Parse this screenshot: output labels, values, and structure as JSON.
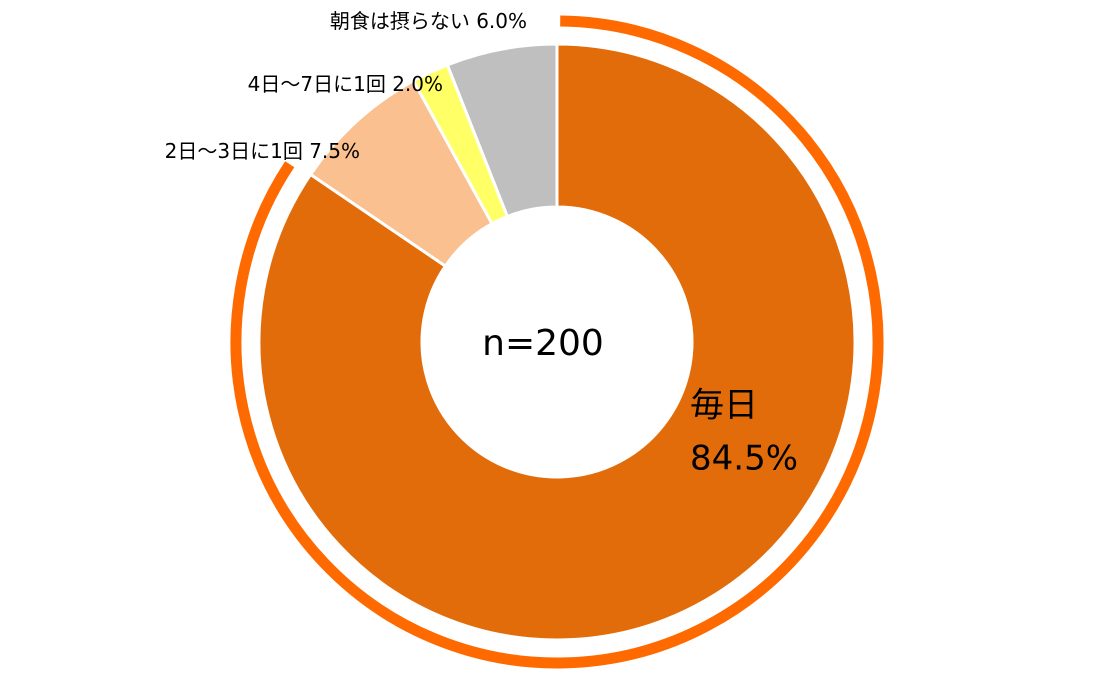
{
  "chart_data": {
    "type": "donut",
    "center_label": "n=200",
    "categories": [
      "毎日",
      "2日～3日に1回",
      "4日～7日に1回",
      "朝食は摂らない"
    ],
    "values": [
      84.5,
      7.5,
      2.0,
      6.0
    ],
    "value_labels": [
      "84.5%",
      "7.5%",
      "2.0%",
      "6.0%"
    ],
    "colors": [
      "#e36c0a",
      "#fac090",
      "#ffff66",
      "#bfbfbf"
    ],
    "highlight_color": "#ff6a00"
  }
}
